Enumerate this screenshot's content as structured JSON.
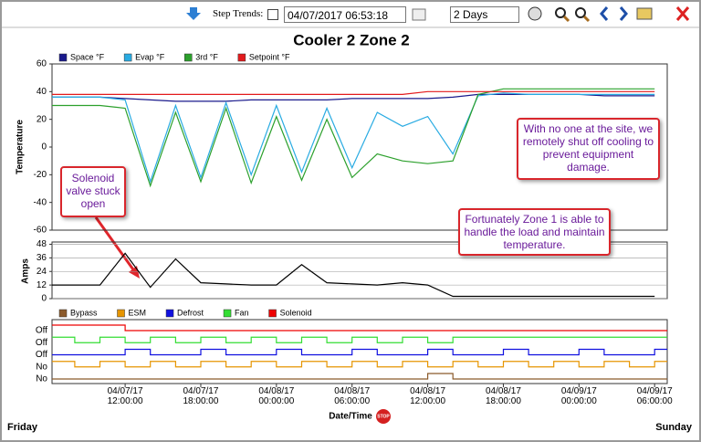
{
  "toolbar": {
    "step_trends_label": "Step Trends:",
    "datetime": "04/07/2017 06:53:18",
    "range": "2 Days"
  },
  "chart_data": [
    {
      "type": "line",
      "title": "Cooler 2 Zone 2",
      "y_label": "Temperature",
      "xlim": [
        "04/07/17 06:12:00",
        "04/09/17 07:00:00"
      ],
      "x": [
        "04/07/17 06:12:00",
        "04/07/17 08:00:00",
        "04/07/17 10:00:00",
        "04/07/17 12:00:00",
        "04/07/17 14:00:00",
        "04/07/17 16:00:00",
        "04/07/17 18:00:00",
        "04/07/17 20:00:00",
        "04/07/17 22:00:00",
        "04/08/17 00:00:00",
        "04/08/17 02:00:00",
        "04/08/17 04:00:00",
        "04/08/17 06:00:00",
        "04/08/17 08:00:00",
        "04/08/17 10:00:00",
        "04/08/17 12:00:00",
        "04/08/17 14:00:00",
        "04/08/17 16:00:00",
        "04/08/17 18:00:00",
        "04/08/17 20:00:00",
        "04/08/17 22:00:00",
        "04/09/17 00:00:00",
        "04/09/17 02:00:00",
        "04/09/17 04:00:00",
        "04/09/17 06:00:00"
      ],
      "ylim": [
        -60,
        60
      ],
      "yticks": [
        -60,
        -40,
        -20,
        0,
        20,
        40,
        60
      ],
      "series": [
        {
          "name": "Space °F",
          "color": "#1a1a8c",
          "values": [
            36,
            36,
            36,
            35,
            34,
            33,
            33,
            33,
            34,
            34,
            34,
            34,
            35,
            35,
            35,
            35,
            36,
            38,
            38,
            38,
            38,
            38,
            37,
            37,
            37
          ]
        },
        {
          "name": "Evap °F",
          "color": "#29abe2",
          "values": [
            36,
            36,
            36,
            34,
            -25,
            30,
            -22,
            32,
            -20,
            30,
            -18,
            28,
            -15,
            25,
            15,
            22,
            -5,
            37,
            39,
            38,
            38,
            38,
            38,
            38,
            38
          ]
        },
        {
          "name": "3rd °F",
          "color": "#2ca02c",
          "values": [
            30,
            30,
            30,
            28,
            -28,
            25,
            -25,
            28,
            -26,
            22,
            -24,
            20,
            -22,
            -5,
            -10,
            -12,
            -10,
            38,
            42,
            42,
            42,
            42,
            42,
            42,
            42
          ]
        },
        {
          "name": "Setpoint °F",
          "color": "#e31a1c",
          "values": [
            38,
            38,
            38,
            38,
            38,
            38,
            38,
            38,
            38,
            38,
            38,
            38,
            38,
            38,
            38,
            40,
            40,
            40,
            40,
            40,
            40,
            40,
            40,
            40,
            40
          ]
        }
      ]
    },
    {
      "type": "line",
      "y_label": "Amps",
      "xlim": [
        "04/07/17 06:12:00",
        "04/09/17 07:00:00"
      ],
      "x": [
        "04/07/17 06:12:00",
        "04/07/17 08:00:00",
        "04/07/17 10:00:00",
        "04/07/17 12:00:00",
        "04/07/17 14:00:00",
        "04/07/17 16:00:00",
        "04/07/17 18:00:00",
        "04/07/17 20:00:00",
        "04/07/17 22:00:00",
        "04/08/17 00:00:00",
        "04/08/17 02:00:00",
        "04/08/17 04:00:00",
        "04/08/17 06:00:00",
        "04/08/17 08:00:00",
        "04/08/17 10:00:00",
        "04/08/17 12:00:00",
        "04/08/17 14:00:00",
        "04/08/17 16:00:00",
        "04/08/17 18:00:00",
        "04/08/17 20:00:00",
        "04/08/17 22:00:00",
        "04/09/17 00:00:00",
        "04/09/17 02:00:00",
        "04/09/17 04:00:00",
        "04/09/17 06:00:00"
      ],
      "ylim": [
        0,
        50
      ],
      "yticks": [
        0,
        12,
        24,
        36,
        48
      ],
      "grid": true,
      "series": [
        {
          "color": "#000000",
          "values": [
            12,
            12,
            12,
            40,
            10,
            35,
            14,
            13,
            12,
            12,
            30,
            14,
            13,
            12,
            14,
            12,
            2,
            2,
            2,
            2,
            2,
            2,
            2,
            2,
            2
          ]
        }
      ]
    },
    {
      "type": "step",
      "xlim": [
        "04/07/17 06:12:00",
        "04/09/17 07:00:00"
      ],
      "x": [
        "04/07/17 06:12:00",
        "04/07/17 08:00:00",
        "04/07/17 10:00:00",
        "04/07/17 12:00:00",
        "04/07/17 14:00:00",
        "04/07/17 16:00:00",
        "04/07/17 18:00:00",
        "04/07/17 20:00:00",
        "04/07/17 22:00:00",
        "04/08/17 00:00:00",
        "04/08/17 02:00:00",
        "04/08/17 04:00:00",
        "04/08/17 06:00:00",
        "04/08/17 08:00:00",
        "04/08/17 10:00:00",
        "04/08/17 12:00:00",
        "04/08/17 14:00:00",
        "04/08/17 16:00:00",
        "04/08/17 18:00:00",
        "04/08/17 20:00:00",
        "04/08/17 22:00:00",
        "04/09/17 00:00:00",
        "04/09/17 02:00:00",
        "04/09/17 04:00:00",
        "04/09/17 06:00:00"
      ],
      "xticks": [
        "04/07/17 12:00:00",
        "04/07/17 18:00:00",
        "04/08/17 00:00:00",
        "04/08/17 06:00:00",
        "04/08/17 12:00:00",
        "04/08/17 18:00:00",
        "04/09/17 00:00:00",
        "04/09/17 06:00:00"
      ],
      "series": [
        {
          "name": "Bypass",
          "label": "No",
          "color": "#8b5a2b",
          "values": [
            0,
            0,
            0,
            0,
            0,
            0,
            0,
            0,
            0,
            0,
            0,
            0,
            0,
            0,
            0,
            1,
            0,
            0,
            0,
            0,
            0,
            0,
            0,
            0,
            0
          ]
        },
        {
          "name": "ESM",
          "label": "No",
          "color": "#e69500",
          "values": [
            1,
            0,
            1,
            0,
            1,
            0,
            1,
            0,
            1,
            0,
            1,
            0,
            1,
            0,
            1,
            0,
            1,
            0,
            1,
            0,
            1,
            0,
            1,
            0,
            1
          ]
        },
        {
          "name": "Defrost",
          "label": "Off",
          "color": "#1010e0",
          "values": [
            0,
            0,
            0,
            1,
            0,
            0,
            1,
            0,
            0,
            1,
            0,
            0,
            1,
            0,
            0,
            1,
            0,
            0,
            1,
            0,
            0,
            1,
            0,
            0,
            1
          ]
        },
        {
          "name": "Fan",
          "label": "Off",
          "color": "#33dd33",
          "values": [
            1,
            0,
            1,
            0,
            1,
            0,
            1,
            0,
            1,
            0,
            1,
            0,
            1,
            0,
            1,
            0,
            1,
            1,
            1,
            1,
            1,
            1,
            1,
            1,
            1
          ]
        },
        {
          "name": "Solenoid",
          "label": "Off",
          "color": "#ee0000",
          "values": [
            1,
            1,
            1,
            0,
            0,
            0,
            0,
            0,
            0,
            0,
            0,
            0,
            0,
            0,
            0,
            0,
            0,
            0,
            0,
            0,
            0,
            0,
            0,
            0,
            0
          ]
        }
      ]
    }
  ],
  "annotations": [
    "Solenoid valve stuck open",
    "With no one at the site, we remotely shut off cooling to prevent equipment damage.",
    "Fortunately Zone 1 is able to handle the load and maintain temperature."
  ],
  "footer": {
    "left": "Friday",
    "center": "Date/Time",
    "stop": "STOP",
    "right": "Sunday"
  }
}
